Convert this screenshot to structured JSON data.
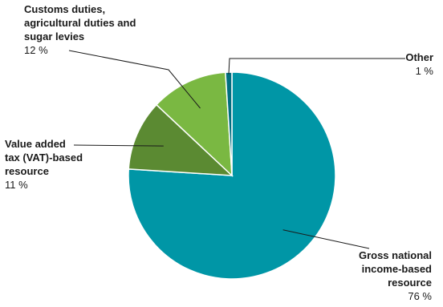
{
  "chart_data": {
    "type": "pie",
    "slices": [
      {
        "name_lines": [
          "Gross national",
          "income-based",
          "resource"
        ],
        "percent_label": "76 %",
        "value": 76,
        "color": "#0096a6"
      },
      {
        "name_lines": [
          "Value added",
          "tax (VAT)-based",
          "resource"
        ],
        "percent_label": "11 %",
        "value": 11,
        "color": "#5b8a32"
      },
      {
        "name_lines": [
          "Customs duties,",
          "agricultural duties and",
          "sugar levies"
        ],
        "percent_label": "12 %",
        "value": 12,
        "color": "#7ab842"
      },
      {
        "name_lines": [
          "Other"
        ],
        "percent_label": "1 %",
        "value": 1,
        "color": "#006f80"
      }
    ]
  }
}
